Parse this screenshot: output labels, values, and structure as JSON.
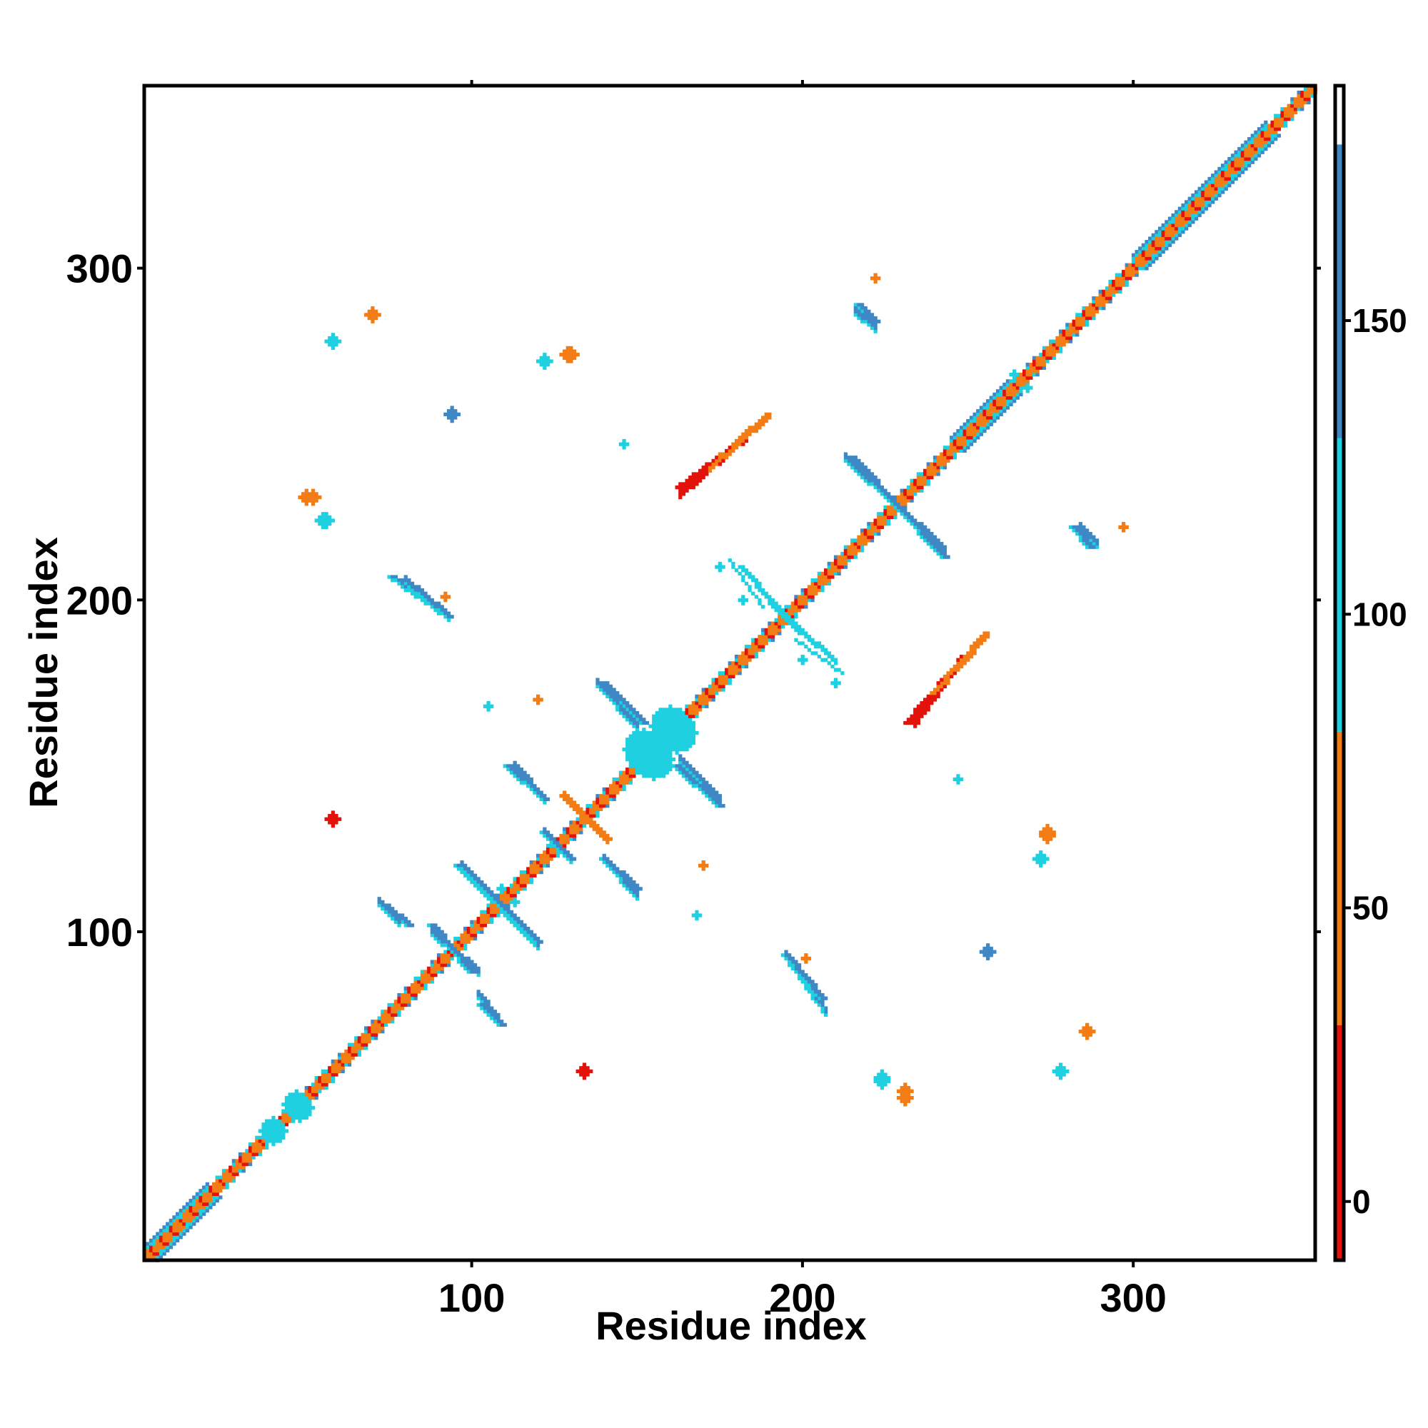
{
  "chart_data": {
    "type": "heatmap",
    "title": "",
    "xlabel": "Residue index",
    "ylabel": "Residue index",
    "xlim": [
      1,
      355
    ],
    "ylim": [
      1,
      355
    ],
    "x_ticks": [
      100,
      200,
      300
    ],
    "y_ticks": [
      100,
      200,
      300
    ],
    "x_tick_labels": [
      "100",
      "200",
      "300"
    ],
    "y_tick_labels": [
      "100",
      "200",
      "300"
    ],
    "grid": false,
    "legend": "colorbar-right",
    "colorbar": {
      "min": -10,
      "max": 190,
      "ticks": [
        0,
        50,
        100,
        150
      ],
      "tick_labels": [
        "0",
        "50",
        "100",
        "150"
      ],
      "bands": [
        {
          "from": -10,
          "to": 30,
          "color": "#e3120b"
        },
        {
          "from": 30,
          "to": 80,
          "color": "#f47c14"
        },
        {
          "from": 80,
          "to": 130,
          "color": "#1fd0e0"
        },
        {
          "from": 130,
          "to": 180,
          "color": "#3f88c5"
        },
        {
          "from": 180,
          "to": 190,
          "color": "#ffffff"
        }
      ]
    },
    "diagonal": {
      "from": 1,
      "to": 355
    },
    "features": [
      {
        "kind": "anti",
        "x0": 88,
        "y0": 102,
        "x1": 100,
        "y1": 88,
        "value": 160,
        "width": 3
      },
      {
        "kind": "anti",
        "x0": 96,
        "y0": 120,
        "x1": 120,
        "y1": 97,
        "value": 160,
        "width": 3
      },
      {
        "kind": "anti",
        "x0": 122,
        "y0": 130,
        "x1": 130,
        "y1": 122,
        "value": 160,
        "width": 3
      },
      {
        "kind": "anti",
        "x0": 128,
        "y0": 141,
        "x1": 141,
        "y1": 128,
        "value": 40,
        "width": 3
      },
      {
        "kind": "anti",
        "x0": 140,
        "y0": 122,
        "x1": 150,
        "y1": 113,
        "value": 140,
        "width": 3
      },
      {
        "kind": "anti",
        "x0": 111,
        "y0": 150,
        "x1": 122,
        "y1": 140,
        "value": 150,
        "width": 3
      },
      {
        "kind": "anti",
        "x0": 140,
        "y0": 175,
        "x1": 152,
        "y1": 163,
        "value": 160,
        "width": 3
      },
      {
        "kind": "anti",
        "x0": 162,
        "y0": 150,
        "x1": 175,
        "y1": 138,
        "value": 160,
        "width": 3
      },
      {
        "kind": "anti",
        "x0": 215,
        "y0": 243,
        "x1": 243,
        "y1": 213,
        "value": 150,
        "width": 3
      },
      {
        "kind": "anti",
        "x0": 182,
        "y0": 210,
        "x1": 200,
        "y1": 190,
        "value": 110,
        "width": 2
      },
      {
        "kind": "anti",
        "x0": 198,
        "y0": 188,
        "x1": 212,
        "y1": 178,
        "value": 110,
        "width": 1
      },
      {
        "kind": "para",
        "x0": 76,
        "y0": 207,
        "x1": 93,
        "y1": 195,
        "value": 160,
        "width": 3
      },
      {
        "kind": "para",
        "x0": 74,
        "y0": 108,
        "x1": 81,
        "y1": 102,
        "value": 160,
        "width": 3
      },
      {
        "kind": "para",
        "x0": 103,
        "y0": 78,
        "x1": 109,
        "y1": 72,
        "value": 160,
        "width": 3
      },
      {
        "kind": "para",
        "x0": 195,
        "y0": 93,
        "x1": 206,
        "y1": 80,
        "value": 150,
        "width": 3
      },
      {
        "kind": "para",
        "x0": 217,
        "y0": 289,
        "x1": 222,
        "y1": 284,
        "value": 160,
        "width": 3
      },
      {
        "kind": "para",
        "x0": 282,
        "y0": 222,
        "x1": 287,
        "y1": 216,
        "value": 160,
        "width": 3
      },
      {
        "kind": "para",
        "x0": 163,
        "y0": 234,
        "x1": 182,
        "y1": 248,
        "value": 20,
        "width": 3
      },
      {
        "kind": "para",
        "x0": 172,
        "y0": 240,
        "x1": 190,
        "y1": 256,
        "value": 60,
        "width": 2
      },
      {
        "kind": "para",
        "x0": 232,
        "y0": 163,
        "x1": 245,
        "y1": 178,
        "value": 20,
        "width": 3
      },
      {
        "kind": "para",
        "x0": 240,
        "y0": 172,
        "x1": 256,
        "y1": 190,
        "value": 60,
        "width": 2
      },
      {
        "kind": "blob",
        "x": 152,
        "y": 155,
        "r": 6,
        "value": 100
      },
      {
        "kind": "blob",
        "x": 160,
        "y": 162,
        "r": 6,
        "value": 100
      },
      {
        "kind": "blob",
        "x": 40,
        "y": 40,
        "r": 4,
        "value": 100
      },
      {
        "kind": "blob",
        "x": 48,
        "y": 47,
        "r": 4,
        "value": 100
      },
      {
        "kind": "blob",
        "x": 70,
        "y": 286,
        "r": 2,
        "value": 55
      },
      {
        "kind": "blob",
        "x": 58,
        "y": 278,
        "r": 2,
        "value": 100
      },
      {
        "kind": "blob",
        "x": 122,
        "y": 272,
        "r": 2,
        "value": 100
      },
      {
        "kind": "blob",
        "x": 129,
        "y": 274,
        "r": 2,
        "value": 55
      },
      {
        "kind": "blob",
        "x": 94,
        "y": 256,
        "r": 2,
        "value": 150
      },
      {
        "kind": "blob",
        "x": 52,
        "y": 231,
        "r": 2,
        "value": 40
      },
      {
        "kind": "blob",
        "x": 55,
        "y": 224,
        "r": 2,
        "value": 100
      },
      {
        "kind": "blob",
        "x": 58,
        "y": 134,
        "r": 2,
        "value": 20
      },
      {
        "kind": "blob",
        "x": 134,
        "y": 58,
        "r": 2,
        "value": 20
      },
      {
        "kind": "blob",
        "x": 224,
        "y": 56,
        "r": 2,
        "value": 100
      },
      {
        "kind": "blob",
        "x": 231,
        "y": 50,
        "r": 2,
        "value": 40
      },
      {
        "kind": "blob",
        "x": 272,
        "y": 122,
        "r": 2,
        "value": 100
      },
      {
        "kind": "blob",
        "x": 274,
        "y": 130,
        "r": 2,
        "value": 55
      },
      {
        "kind": "blob",
        "x": 256,
        "y": 94,
        "r": 2,
        "value": 150
      },
      {
        "kind": "blob",
        "x": 286,
        "y": 70,
        "r": 2,
        "value": 55
      },
      {
        "kind": "blob",
        "x": 278,
        "y": 58,
        "r": 2,
        "value": 100
      },
      {
        "kind": "blob",
        "x": 92,
        "y": 201,
        "r": 1,
        "value": 30
      },
      {
        "kind": "blob",
        "x": 201,
        "y": 92,
        "r": 1,
        "value": 30
      },
      {
        "kind": "blob",
        "x": 146,
        "y": 247,
        "r": 1,
        "value": 110
      },
      {
        "kind": "blob",
        "x": 247,
        "y": 146,
        "r": 1,
        "value": 110
      },
      {
        "kind": "blob",
        "x": 105,
        "y": 168,
        "r": 1,
        "value": 100
      },
      {
        "kind": "blob",
        "x": 168,
        "y": 105,
        "r": 1,
        "value": 100
      },
      {
        "kind": "blob",
        "x": 170,
        "y": 120,
        "r": 1,
        "value": 55
      },
      {
        "kind": "blob",
        "x": 120,
        "y": 170,
        "r": 1,
        "value": 55
      },
      {
        "kind": "blob",
        "x": 268,
        "y": 264,
        "r": 1,
        "value": 110
      },
      {
        "kind": "blob",
        "x": 264,
        "y": 268,
        "r": 1,
        "value": 110
      },
      {
        "kind": "blob",
        "x": 200,
        "y": 182,
        "r": 1,
        "value": 110
      },
      {
        "kind": "blob",
        "x": 210,
        "y": 175,
        "r": 1,
        "value": 110
      },
      {
        "kind": "blob",
        "x": 182,
        "y": 200,
        "r": 1,
        "value": 110
      },
      {
        "kind": "blob",
        "x": 222,
        "y": 297,
        "r": 1,
        "value": 55
      },
      {
        "kind": "blob",
        "x": 297,
        "y": 222,
        "r": 1,
        "value": 55
      },
      {
        "kind": "blob",
        "x": 109,
        "y": 113,
        "r": 1,
        "value": 110
      },
      {
        "kind": "blob",
        "x": 113,
        "y": 109,
        "r": 1,
        "value": 110
      }
    ]
  }
}
